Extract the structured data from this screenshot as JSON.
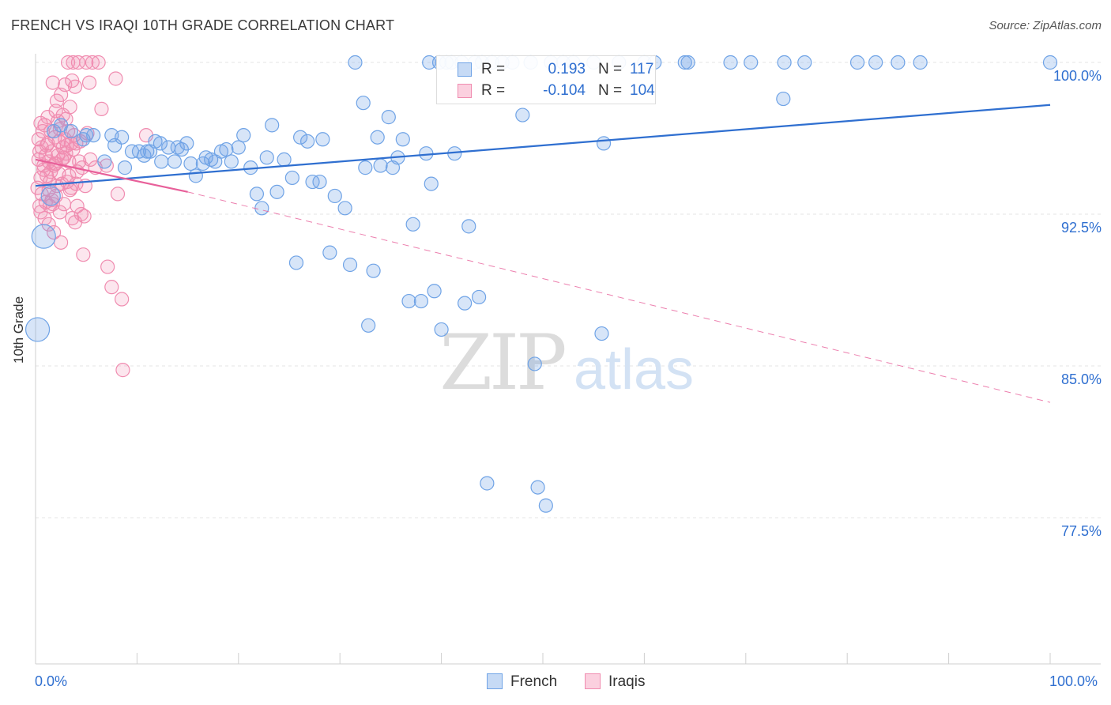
{
  "title": "FRENCH VS IRAQI 10TH GRADE CORRELATION CHART",
  "source": "Source: ZipAtlas.com",
  "watermark": {
    "zip": "ZIP",
    "atlas": "atlas"
  },
  "colors": {
    "blue": "#6fa3e6",
    "blue_line": "#2f6fd0",
    "pink": "#f08cb0",
    "pink_line": "#e8609a",
    "tick_text": "#2f6fd0"
  },
  "legend": {
    "rows": [
      {
        "r_label": "R =",
        "r_value": "0.193",
        "n_label": "N =",
        "n_value": "117"
      },
      {
        "r_label": "R =",
        "r_value": "-0.104",
        "n_label": "N =",
        "n_value": "104"
      }
    ]
  },
  "bottom_legend": {
    "french": "French",
    "iraqis": "Iraqis"
  },
  "chart_data": {
    "type": "scatter",
    "title": "FRENCH VS IRAQI 10TH GRADE CORRELATION CHART",
    "xlabel": "",
    "ylabel": "10th Grade",
    "xlim": [
      0,
      100
    ],
    "ylim": [
      70,
      100.5
    ],
    "x_tick_labels": [
      "0.0%",
      "100.0%"
    ],
    "y_ticks": [
      {
        "value": 100,
        "label": "100.0%"
      },
      {
        "value": 92.5,
        "label": "92.5%"
      },
      {
        "value": 85,
        "label": "85.0%"
      },
      {
        "value": 77.5,
        "label": "77.5%"
      }
    ],
    "grid": true,
    "series": [
      {
        "name": "French",
        "r": 0.193,
        "n": 117,
        "trend": {
          "x": [
            0,
            100
          ],
          "y": [
            93.9,
            97.9
          ],
          "style": "solid"
        },
        "points": [
          [
            0.2,
            86.8,
            3
          ],
          [
            0.8,
            91.4,
            3
          ],
          [
            1.5,
            93.4,
            2
          ],
          [
            1.8,
            96.6,
            1
          ],
          [
            2.5,
            96.9,
            1
          ],
          [
            3.5,
            96.6,
            1
          ],
          [
            4.7,
            96.2,
            1
          ],
          [
            5.0,
            96.4,
            1
          ],
          [
            5.7,
            96.4,
            1
          ],
          [
            6.8,
            95.1,
            1
          ],
          [
            7.5,
            96.4,
            1
          ],
          [
            7.8,
            95.9,
            1
          ],
          [
            8.5,
            96.3,
            1
          ],
          [
            8.8,
            94.8,
            1
          ],
          [
            9.5,
            95.6,
            1
          ],
          [
            10.2,
            95.6,
            1
          ],
          [
            10.7,
            95.4,
            1
          ],
          [
            11.0,
            95.6,
            1
          ],
          [
            11.3,
            95.6,
            1
          ],
          [
            11.8,
            96.1,
            1
          ],
          [
            12.3,
            96.0,
            1
          ],
          [
            12.4,
            95.1,
            1
          ],
          [
            13.1,
            95.8,
            1
          ],
          [
            13.7,
            95.1,
            1
          ],
          [
            14.0,
            95.8,
            1
          ],
          [
            14.4,
            95.7,
            1
          ],
          [
            14.9,
            96.0,
            1
          ],
          [
            15.3,
            95.0,
            1
          ],
          [
            15.8,
            94.4,
            1
          ],
          [
            16.5,
            95.0,
            1
          ],
          [
            16.8,
            95.3,
            1
          ],
          [
            17.3,
            95.2,
            1
          ],
          [
            17.7,
            95.1,
            1
          ],
          [
            18.3,
            95.6,
            1
          ],
          [
            18.8,
            95.7,
            1
          ],
          [
            19.3,
            95.1,
            1
          ],
          [
            20.0,
            95.8,
            1
          ],
          [
            20.5,
            96.4,
            1
          ],
          [
            21.2,
            94.8,
            1
          ],
          [
            21.8,
            93.5,
            1
          ],
          [
            22.3,
            92.8,
            1
          ],
          [
            22.8,
            95.3,
            1
          ],
          [
            23.3,
            96.9,
            1
          ],
          [
            23.8,
            93.6,
            1
          ],
          [
            24.5,
            95.2,
            1
          ],
          [
            25.3,
            94.3,
            1
          ],
          [
            25.7,
            90.1,
            1
          ],
          [
            26.1,
            96.3,
            1
          ],
          [
            26.8,
            96.1,
            1
          ],
          [
            27.3,
            94.1,
            1
          ],
          [
            28.0,
            94.1,
            1
          ],
          [
            28.3,
            96.2,
            1
          ],
          [
            29.0,
            90.6,
            1
          ],
          [
            29.5,
            93.4,
            1
          ],
          [
            30.5,
            92.8,
            1
          ],
          [
            31.0,
            90.0,
            1
          ],
          [
            31.5,
            100.0,
            1
          ],
          [
            32.3,
            98.0,
            1
          ],
          [
            32.5,
            94.8,
            1
          ],
          [
            32.8,
            87.0,
            1
          ],
          [
            33.3,
            89.7,
            1
          ],
          [
            33.7,
            96.3,
            1
          ],
          [
            34.0,
            94.9,
            1
          ],
          [
            34.8,
            97.3,
            1
          ],
          [
            35.2,
            94.8,
            1
          ],
          [
            35.7,
            95.3,
            1
          ],
          [
            36.2,
            96.2,
            1
          ],
          [
            36.8,
            88.2,
            1
          ],
          [
            37.2,
            92.0,
            1
          ],
          [
            38.0,
            88.2,
            1
          ],
          [
            38.5,
            95.5,
            1
          ],
          [
            38.8,
            100.0,
            1
          ],
          [
            39.0,
            94.0,
            1
          ],
          [
            39.3,
            88.7,
            1
          ],
          [
            39.8,
            100.0,
            1
          ],
          [
            40.0,
            86.8,
            1
          ],
          [
            40.5,
            100.0,
            1
          ],
          [
            41.0,
            100.0,
            1
          ],
          [
            41.3,
            95.5,
            1
          ],
          [
            42.0,
            100.0,
            1
          ],
          [
            42.3,
            88.1,
            1
          ],
          [
            42.7,
            91.9,
            1
          ],
          [
            43.3,
            100.0,
            1
          ],
          [
            43.7,
            88.4,
            1
          ],
          [
            44.0,
            100.0,
            1
          ],
          [
            44.5,
            79.2,
            1
          ],
          [
            45.0,
            100.0,
            1
          ],
          [
            46.0,
            100.0,
            1
          ],
          [
            47.0,
            100.0,
            1
          ],
          [
            48.0,
            97.4,
            1
          ],
          [
            48.8,
            100.0,
            1
          ],
          [
            49.2,
            85.1,
            1
          ],
          [
            49.5,
            79.0,
            1
          ],
          [
            50.3,
            78.1,
            1
          ],
          [
            50.8,
            100.0,
            1
          ],
          [
            52.0,
            100.0,
            1
          ],
          [
            53.0,
            100.0,
            1
          ],
          [
            55.0,
            100.0,
            1
          ],
          [
            55.8,
            86.6,
            1
          ],
          [
            56.0,
            96.0,
            1
          ],
          [
            57.5,
            100.0,
            1
          ],
          [
            60.0,
            100.0,
            1
          ],
          [
            61.0,
            100.0,
            1
          ],
          [
            64.0,
            100.0,
            1
          ],
          [
            64.3,
            100.0,
            1
          ],
          [
            68.5,
            100.0,
            1
          ],
          [
            70.5,
            100.0,
            1
          ],
          [
            73.8,
            100.0,
            1
          ],
          [
            73.7,
            98.2,
            1
          ],
          [
            75.8,
            100.0,
            1
          ],
          [
            81.0,
            100.0,
            1
          ],
          [
            82.8,
            100.0,
            1
          ],
          [
            85.0,
            100.0,
            1
          ],
          [
            87.2,
            100.0,
            1
          ],
          [
            100.0,
            100.0,
            1
          ]
        ]
      },
      {
        "name": "Iraqis",
        "r": -0.104,
        "n": 104,
        "trend": {
          "x": [
            0,
            15,
            100
          ],
          "y": [
            95.2,
            93.6,
            83.2
          ],
          "solid_until": 15,
          "style": "solid-then-dashed"
        },
        "points": [
          [
            0.2,
            93.8,
            1
          ],
          [
            0.3,
            95.2,
            1
          ],
          [
            0.3,
            96.2,
            1
          ],
          [
            0.4,
            92.9,
            1
          ],
          [
            0.5,
            92.6,
            1
          ],
          [
            0.5,
            94.3,
            1
          ],
          [
            0.6,
            95.8,
            1
          ],
          [
            0.6,
            93.5,
            1
          ],
          [
            0.7,
            96.6,
            1
          ],
          [
            0.8,
            94.9,
            1
          ],
          [
            0.9,
            92.3,
            1
          ],
          [
            1.0,
            95.4,
            1
          ],
          [
            1.0,
            93.1,
            1
          ],
          [
            1.1,
            94.4,
            1
          ],
          [
            1.2,
            96.0,
            1
          ],
          [
            1.3,
            93.7,
            1
          ],
          [
            1.3,
            95.1,
            1
          ],
          [
            1.4,
            92.9,
            1
          ],
          [
            1.5,
            96.6,
            1
          ],
          [
            1.5,
            94.6,
            1
          ],
          [
            1.6,
            95.6,
            1
          ],
          [
            1.7,
            99.0,
            1
          ],
          [
            1.7,
            93.0,
            1
          ],
          [
            1.8,
            91.6,
            1
          ],
          [
            1.8,
            94.9,
            1
          ],
          [
            1.9,
            96.3,
            1
          ],
          [
            2.0,
            95.0,
            1
          ],
          [
            2.0,
            93.4,
            1
          ],
          [
            2.1,
            98.1,
            1
          ],
          [
            2.2,
            97.1,
            1
          ],
          [
            2.2,
            95.4,
            1
          ],
          [
            2.3,
            94.5,
            1
          ],
          [
            2.4,
            96.7,
            1
          ],
          [
            2.4,
            92.6,
            1
          ],
          [
            2.5,
            98.4,
            1
          ],
          [
            2.5,
            91.1,
            1
          ],
          [
            2.6,
            95.2,
            1
          ],
          [
            2.7,
            97.4,
            1
          ],
          [
            2.7,
            95.8,
            1
          ],
          [
            2.8,
            93.0,
            1
          ],
          [
            2.9,
            98.9,
            1
          ],
          [
            2.9,
            96.2,
            1
          ],
          [
            3.0,
            97.2,
            1
          ],
          [
            3.0,
            95.5,
            1
          ],
          [
            3.1,
            94.1,
            1
          ],
          [
            3.2,
            100.0,
            1
          ],
          [
            3.2,
            96.6,
            1
          ],
          [
            3.3,
            95.1,
            1
          ],
          [
            3.4,
            97.8,
            1
          ],
          [
            3.4,
            93.7,
            1
          ],
          [
            3.5,
            96.0,
            1
          ],
          [
            3.6,
            99.1,
            1
          ],
          [
            3.6,
            92.3,
            1
          ],
          [
            3.7,
            100.0,
            1
          ],
          [
            3.8,
            96.4,
            1
          ],
          [
            3.9,
            98.8,
            1
          ],
          [
            4.0,
            94.0,
            1
          ],
          [
            4.0,
            96.0,
            1
          ],
          [
            4.1,
            92.9,
            1
          ],
          [
            4.2,
            100.0,
            1
          ],
          [
            4.3,
            95.1,
            1
          ],
          [
            4.5,
            92.5,
            1
          ],
          [
            4.6,
            94.8,
            1
          ],
          [
            4.7,
            90.5,
            1
          ],
          [
            4.8,
            92.4,
            1
          ],
          [
            5.0,
            100.0,
            1
          ],
          [
            5.1,
            96.5,
            1
          ],
          [
            5.3,
            99.0,
            1
          ],
          [
            5.6,
            100.0,
            1
          ],
          [
            5.9,
            94.8,
            1
          ],
          [
            6.2,
            100.0,
            1
          ],
          [
            6.5,
            97.7,
            1
          ],
          [
            7.0,
            94.9,
            1
          ],
          [
            7.1,
            89.9,
            1
          ],
          [
            7.5,
            88.9,
            1
          ],
          [
            7.9,
            99.2,
            1
          ],
          [
            8.1,
            93.5,
            1
          ],
          [
            8.5,
            88.3,
            1
          ],
          [
            8.6,
            84.8,
            1
          ],
          [
            10.9,
            96.4,
            1
          ],
          [
            0.4,
            95.6,
            1
          ],
          [
            0.8,
            94.7,
            1
          ],
          [
            1.1,
            95.9,
            1
          ],
          [
            1.4,
            94.1,
            1
          ],
          [
            1.6,
            93.2,
            1
          ],
          [
            1.9,
            95.0,
            1
          ],
          [
            2.1,
            93.9,
            1
          ],
          [
            2.3,
            96.1,
            1
          ],
          [
            2.6,
            94.0,
            1
          ],
          [
            2.8,
            95.3,
            1
          ],
          [
            3.1,
            95.9,
            1
          ],
          [
            3.3,
            94.4,
            1
          ],
          [
            3.5,
            93.8,
            1
          ],
          [
            3.7,
            95.7,
            1
          ],
          [
            3.9,
            92.1,
            1
          ],
          [
            4.1,
            94.6,
            1
          ],
          [
            4.4,
            96.1,
            1
          ],
          [
            4.9,
            93.9,
            1
          ],
          [
            5.4,
            95.2,
            1
          ],
          [
            0.5,
            97.0,
            1
          ],
          [
            1.2,
            97.3,
            1
          ],
          [
            2.0,
            97.6,
            1
          ],
          [
            0.9,
            96.9,
            1
          ],
          [
            1.3,
            92.0,
            1
          ]
        ]
      }
    ]
  }
}
